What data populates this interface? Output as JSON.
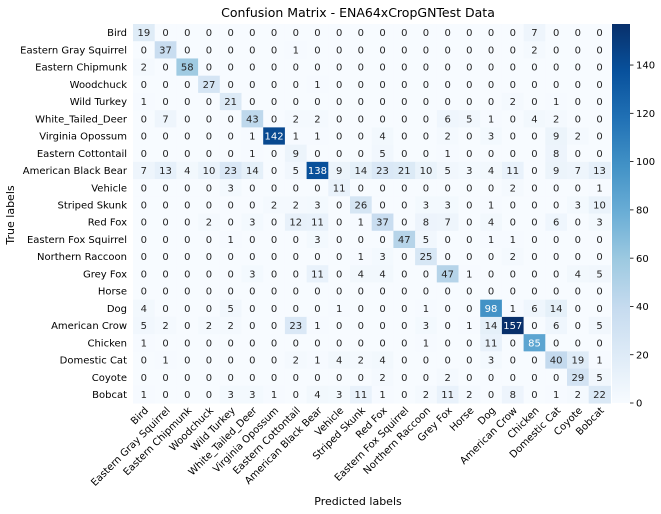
{
  "chart_data": {
    "type": "heatmap",
    "title": "Confusion Matrix - ENA64xCropGNTest Data",
    "xlabel": "Predicted labels",
    "ylabel": "True labels",
    "labels": [
      "Bird",
      "Eastern Gray Squirrel",
      "Eastern Chipmunk",
      "Woodchuck",
      "Wild Turkey",
      "White_Tailed_Deer",
      "Virginia Opossum",
      "Eastern Cottontail",
      "American Black Bear",
      "Vehicle",
      "Striped Skunk",
      "Red Fox",
      "Eastern Fox Squirrel",
      "Northern Raccoon",
      "Grey Fox",
      "Horse",
      "Dog",
      "American Crow",
      "Chicken",
      "Domestic Cat",
      "Coyote",
      "Bobcat"
    ],
    "matrix": [
      [
        19,
        0,
        0,
        0,
        0,
        0,
        0,
        0,
        0,
        0,
        0,
        0,
        0,
        0,
        0,
        0,
        0,
        0,
        7,
        0,
        0,
        0
      ],
      [
        0,
        37,
        0,
        0,
        0,
        0,
        0,
        1,
        0,
        0,
        0,
        0,
        0,
        0,
        0,
        0,
        0,
        0,
        2,
        0,
        0,
        0
      ],
      [
        2,
        0,
        58,
        0,
        0,
        0,
        0,
        0,
        0,
        0,
        0,
        0,
        0,
        0,
        0,
        0,
        0,
        0,
        0,
        0,
        0,
        0
      ],
      [
        0,
        0,
        0,
        27,
        0,
        0,
        0,
        0,
        1,
        0,
        0,
        0,
        0,
        0,
        0,
        0,
        0,
        0,
        0,
        0,
        0,
        0
      ],
      [
        1,
        0,
        0,
        0,
        21,
        0,
        0,
        0,
        0,
        0,
        0,
        0,
        0,
        0,
        0,
        0,
        0,
        2,
        0,
        1,
        0,
        0
      ],
      [
        0,
        7,
        0,
        0,
        0,
        43,
        0,
        2,
        2,
        0,
        0,
        0,
        0,
        0,
        6,
        5,
        1,
        0,
        4,
        2,
        0,
        0
      ],
      [
        0,
        0,
        0,
        0,
        0,
        1,
        142,
        1,
        1,
        0,
        0,
        4,
        0,
        0,
        2,
        0,
        3,
        0,
        0,
        9,
        2,
        0
      ],
      [
        0,
        0,
        0,
        0,
        0,
        1,
        0,
        9,
        0,
        0,
        0,
        5,
        0,
        0,
        1,
        0,
        0,
        0,
        0,
        8,
        0,
        0
      ],
      [
        7,
        13,
        4,
        10,
        23,
        14,
        0,
        5,
        138,
        9,
        14,
        23,
        21,
        10,
        5,
        3,
        4,
        11,
        0,
        9,
        7,
        13
      ],
      [
        0,
        0,
        0,
        0,
        3,
        0,
        0,
        0,
        0,
        11,
        0,
        0,
        0,
        0,
        0,
        0,
        0,
        2,
        0,
        0,
        0,
        1
      ],
      [
        0,
        0,
        0,
        0,
        0,
        0,
        2,
        2,
        3,
        0,
        26,
        0,
        0,
        3,
        3,
        0,
        1,
        0,
        0,
        0,
        3,
        10
      ],
      [
        0,
        0,
        0,
        2,
        0,
        3,
        0,
        12,
        11,
        0,
        1,
        37,
        0,
        8,
        7,
        0,
        4,
        0,
        0,
        6,
        0,
        3
      ],
      [
        0,
        0,
        0,
        0,
        1,
        0,
        0,
        0,
        3,
        0,
        0,
        0,
        47,
        5,
        0,
        0,
        1,
        1,
        0,
        0,
        0,
        0
      ],
      [
        0,
        0,
        0,
        0,
        0,
        0,
        0,
        0,
        0,
        0,
        1,
        3,
        0,
        25,
        0,
        0,
        0,
        2,
        0,
        0,
        0,
        0
      ],
      [
        0,
        0,
        0,
        0,
        0,
        3,
        0,
        0,
        11,
        0,
        4,
        4,
        0,
        0,
        47,
        1,
        0,
        0,
        0,
        0,
        4,
        5
      ],
      [
        0,
        0,
        0,
        0,
        0,
        0,
        0,
        0,
        0,
        0,
        0,
        0,
        0,
        0,
        0,
        0,
        0,
        0,
        0,
        0,
        0,
        0
      ],
      [
        4,
        0,
        0,
        0,
        5,
        0,
        0,
        0,
        0,
        1,
        0,
        0,
        0,
        1,
        0,
        0,
        98,
        1,
        6,
        14,
        0,
        0
      ],
      [
        5,
        2,
        0,
        2,
        2,
        0,
        0,
        23,
        1,
        0,
        0,
        0,
        0,
        3,
        0,
        1,
        14,
        157,
        0,
        6,
        0,
        5
      ],
      [
        1,
        0,
        0,
        0,
        0,
        0,
        0,
        0,
        0,
        0,
        0,
        0,
        0,
        1,
        0,
        0,
        11,
        0,
        85,
        0,
        0,
        0
      ],
      [
        0,
        1,
        0,
        0,
        0,
        0,
        0,
        2,
        1,
        4,
        2,
        4,
        0,
        0,
        0,
        0,
        3,
        0,
        0,
        40,
        19,
        1
      ],
      [
        0,
        0,
        0,
        0,
        0,
        0,
        0,
        0,
        0,
        0,
        0,
        2,
        0,
        0,
        2,
        0,
        0,
        0,
        0,
        0,
        29,
        5
      ],
      [
        1,
        0,
        0,
        0,
        3,
        3,
        1,
        0,
        4,
        3,
        11,
        1,
        0,
        2,
        11,
        2,
        0,
        8,
        0,
        1,
        2,
        22
      ]
    ],
    "colorbar": {
      "min": 0,
      "max": 157,
      "ticks": [
        0,
        20,
        40,
        60,
        80,
        100,
        120,
        140
      ],
      "colormap": "Blues"
    },
    "text_color_threshold": 78,
    "grid": false,
    "legend": "colorbar-right"
  }
}
